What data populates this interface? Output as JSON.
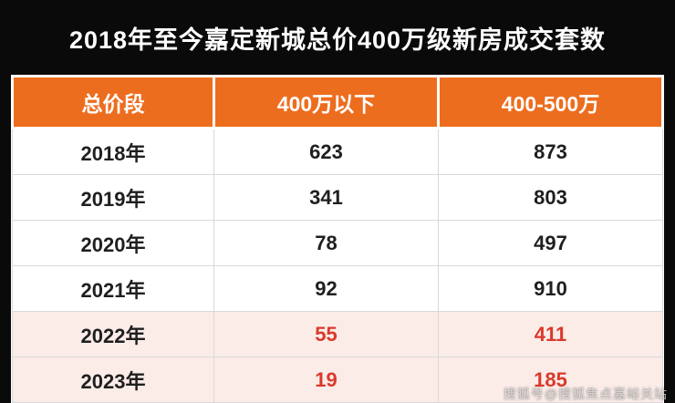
{
  "title": "2018年至今嘉定新城总价400万级新房成交套数",
  "watermark": "搜狐号@搜狐焦点嘉峪关站",
  "table": {
    "headers": [
      "总价段",
      "400万以下",
      "400-500万"
    ],
    "rows": [
      [
        "2018年",
        "623",
        "873"
      ],
      [
        "2019年",
        "341",
        "803"
      ],
      [
        "2020年",
        "78",
        "497"
      ],
      [
        "2021年",
        "92",
        "910"
      ],
      [
        "2022年",
        "55",
        "411"
      ],
      [
        "2023年",
        "19",
        "185"
      ]
    ],
    "highlighted_years": [
      "2022年",
      "2023年"
    ]
  },
  "colors": {
    "frame_bg": "#0a0a0a",
    "header_bg": "#ED6D1F",
    "header_text": "#ffffff",
    "body_text": "#1f1f1f",
    "highlight_row_bg": "#FBECE8",
    "highlight_number_text": "#D9392C",
    "grid_line": "#d9d9d9"
  },
  "chart_data": {
    "type": "table",
    "title": "2018年至今嘉定新城总价400万级新房成交套数",
    "columns": [
      "总价段",
      "400万以下",
      "400-500万"
    ],
    "categories": [
      "2018年",
      "2019年",
      "2020年",
      "2021年",
      "2022年",
      "2023年"
    ],
    "series": [
      {
        "name": "400万以下",
        "values": [
          623,
          341,
          78,
          92,
          55,
          19
        ]
      },
      {
        "name": "400-500万",
        "values": [
          873,
          803,
          497,
          910,
          411,
          185
        ]
      }
    ],
    "highlighted_rows": [
      "2022年",
      "2023年"
    ],
    "legend_position": "none",
    "grid": true
  }
}
